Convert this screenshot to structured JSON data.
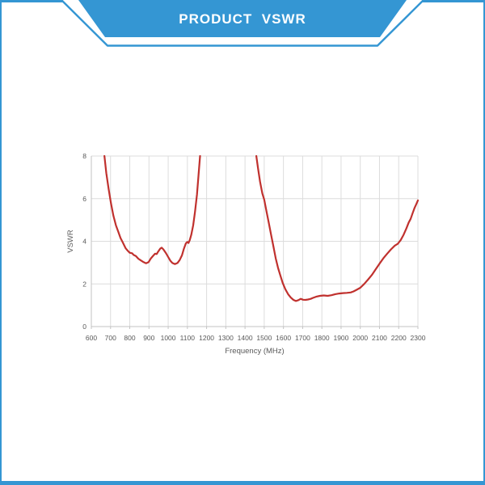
{
  "page": {
    "frame_color": "#3496d3",
    "background_color": "#ffffff"
  },
  "banner": {
    "title": "PRODUCT  VSWR",
    "fill_color": "#3496d3",
    "text_color": "#ffffff"
  },
  "chart_data": {
    "type": "line",
    "title": "",
    "xlabel": "Frequency (MHz)",
    "ylabel": "VSWR",
    "xlim": [
      600,
      2300
    ],
    "ylim": [
      0,
      8
    ],
    "x_ticks": [
      600,
      700,
      800,
      900,
      1000,
      1100,
      1200,
      1300,
      1400,
      1500,
      1600,
      1700,
      1800,
      1900,
      2000,
      2100,
      2200,
      2300
    ],
    "y_ticks": [
      0,
      2,
      4,
      6,
      8
    ],
    "grid": true,
    "legend": "none",
    "colors": {
      "line": "#c0312e",
      "grid": "#dcdcdc",
      "axis": "#c3c3c3",
      "tick_text": "#595959"
    },
    "series": [
      {
        "name": "VSWR",
        "segments": [
          [
            [
              668,
              8
            ],
            [
              678,
              7.2
            ],
            [
              690,
              6.45
            ],
            [
              702,
              5.8
            ],
            [
              715,
              5.2
            ],
            [
              728,
              4.75
            ],
            [
              740,
              4.45
            ],
            [
              752,
              4.15
            ],
            [
              764,
              3.94
            ],
            [
              778,
              3.68
            ],
            [
              790,
              3.55
            ],
            [
              800,
              3.46
            ],
            [
              812,
              3.44
            ],
            [
              820,
              3.36
            ],
            [
              832,
              3.31
            ],
            [
              845,
              3.18
            ],
            [
              858,
              3.1
            ],
            [
              872,
              3.02
            ],
            [
              885,
              2.97
            ],
            [
              898,
              3.02
            ],
            [
              910,
              3.2
            ],
            [
              922,
              3.32
            ],
            [
              932,
              3.42
            ],
            [
              940,
              3.4
            ],
            [
              948,
              3.52
            ],
            [
              958,
              3.65
            ],
            [
              966,
              3.7
            ],
            [
              975,
              3.62
            ],
            [
              988,
              3.45
            ],
            [
              1000,
              3.26
            ],
            [
              1012,
              3.08
            ],
            [
              1022,
              2.98
            ],
            [
              1035,
              2.93
            ],
            [
              1048,
              2.98
            ],
            [
              1060,
              3.12
            ],
            [
              1072,
              3.35
            ],
            [
              1082,
              3.65
            ],
            [
              1092,
              3.9
            ],
            [
              1100,
              3.97
            ],
            [
              1106,
              3.92
            ],
            [
              1112,
              4.05
            ],
            [
              1120,
              4.3
            ],
            [
              1130,
              4.75
            ],
            [
              1140,
              5.4
            ],
            [
              1150,
              6.2
            ],
            [
              1158,
              7.1
            ],
            [
              1166,
              8
            ]
          ],
          [
            [
              1459,
              8
            ],
            [
              1468,
              7.4
            ],
            [
              1478,
              6.8
            ],
            [
              1490,
              6.25
            ],
            [
              1500,
              5.95
            ],
            [
              1512,
              5.4
            ],
            [
              1524,
              4.85
            ],
            [
              1536,
              4.3
            ],
            [
              1548,
              3.75
            ],
            [
              1560,
              3.2
            ],
            [
              1572,
              2.75
            ],
            [
              1584,
              2.4
            ],
            [
              1596,
              2.05
            ],
            [
              1610,
              1.75
            ],
            [
              1624,
              1.52
            ],
            [
              1638,
              1.36
            ],
            [
              1652,
              1.25
            ],
            [
              1665,
              1.2
            ],
            [
              1678,
              1.24
            ],
            [
              1690,
              1.3
            ],
            [
              1702,
              1.26
            ],
            [
              1715,
              1.25
            ],
            [
              1728,
              1.27
            ],
            [
              1742,
              1.3
            ],
            [
              1755,
              1.35
            ],
            [
              1770,
              1.4
            ],
            [
              1790,
              1.44
            ],
            [
              1810,
              1.46
            ],
            [
              1830,
              1.44
            ],
            [
              1850,
              1.47
            ],
            [
              1870,
              1.52
            ],
            [
              1890,
              1.55
            ],
            [
              1910,
              1.57
            ],
            [
              1930,
              1.58
            ],
            [
              1950,
              1.6
            ],
            [
              1965,
              1.65
            ],
            [
              1980,
              1.72
            ],
            [
              2000,
              1.82
            ],
            [
              2020,
              2.0
            ],
            [
              2040,
              2.2
            ],
            [
              2060,
              2.42
            ],
            [
              2080,
              2.68
            ],
            [
              2100,
              2.95
            ],
            [
              2120,
              3.2
            ],
            [
              2140,
              3.42
            ],
            [
              2160,
              3.62
            ],
            [
              2180,
              3.8
            ],
            [
              2195,
              3.88
            ],
            [
              2210,
              4.05
            ],
            [
              2225,
              4.3
            ],
            [
              2240,
              4.6
            ],
            [
              2252,
              4.88
            ],
            [
              2262,
              5.05
            ],
            [
              2272,
              5.3
            ],
            [
              2282,
              5.55
            ],
            [
              2292,
              5.75
            ],
            [
              2300,
              5.92
            ]
          ]
        ]
      }
    ]
  }
}
